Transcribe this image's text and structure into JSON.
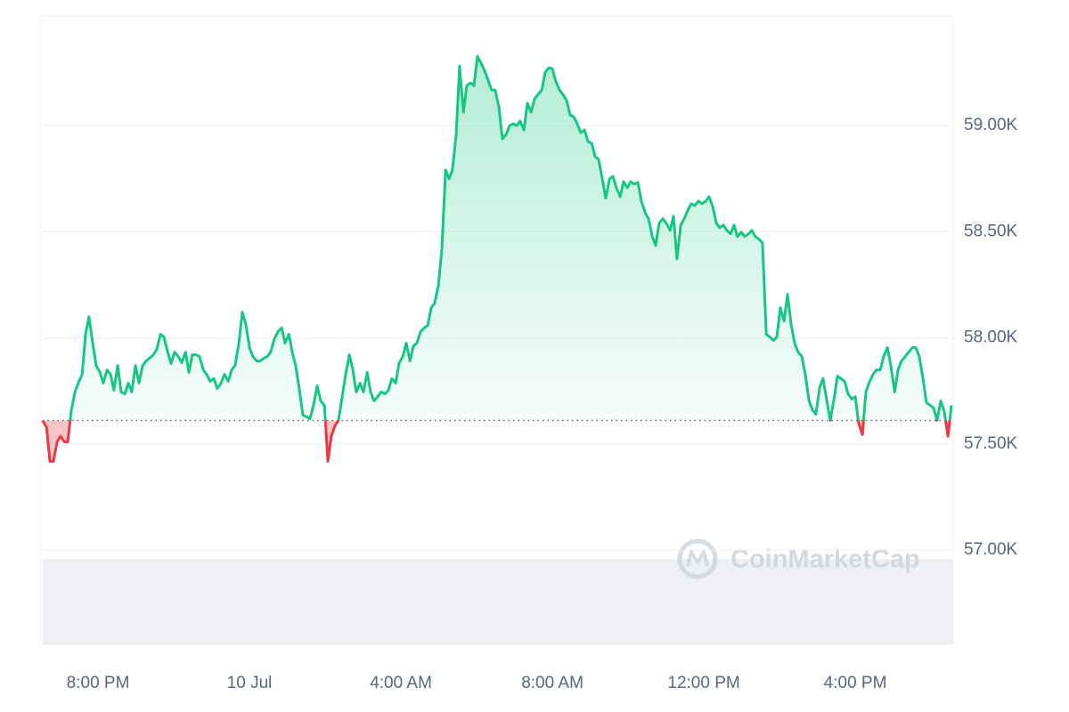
{
  "chart_data": {
    "type": "line",
    "watermark": "CoinMarketCap",
    "color": "#16c784",
    "negative_color": "#ea3943",
    "baseline": 57611,
    "xlim": [
      18.54,
      42.54
    ],
    "xticks": [
      {
        "value": 20,
        "label": "8:00 PM"
      },
      {
        "value": 24,
        "label": "10 Jul"
      },
      {
        "value": 28,
        "label": "4:00 AM"
      },
      {
        "value": 32,
        "label": "8:00 AM"
      },
      {
        "value": 36,
        "label": "12:00 PM"
      },
      {
        "value": 40,
        "label": "4:00 PM"
      }
    ],
    "ylim": [
      56556,
      59516
    ],
    "yticks": [
      {
        "value": 57000,
        "label": "57.00K"
      },
      {
        "value": 57500,
        "label": "57.50K"
      },
      {
        "value": 58000,
        "label": "58.00K"
      },
      {
        "value": 58500,
        "label": "58.50K"
      },
      {
        "value": 59000,
        "label": "59.00K"
      }
    ],
    "grid": true,
    "x": [
      18.54,
      18.64,
      18.73,
      18.82,
      18.92,
      19.01,
      19.11,
      19.2,
      19.29,
      19.39,
      19.48,
      19.58,
      19.67,
      19.76,
      19.86,
      19.95,
      20.05,
      20.14,
      20.24,
      20.33,
      20.42,
      20.52,
      20.61,
      20.71,
      20.8,
      20.89,
      20.99,
      21.08,
      21.18,
      21.27,
      21.36,
      21.46,
      21.55,
      21.65,
      21.74,
      21.84,
      21.93,
      22.02,
      22.12,
      22.21,
      22.31,
      22.4,
      22.49,
      22.59,
      22.68,
      22.78,
      22.87,
      22.96,
      23.06,
      23.15,
      23.25,
      23.34,
      23.44,
      23.53,
      23.62,
      23.72,
      23.81,
      23.91,
      24.0,
      24.09,
      24.19,
      24.28,
      24.38,
      24.47,
      24.56,
      24.66,
      24.75,
      24.85,
      24.94,
      25.04,
      25.13,
      25.22,
      25.32,
      25.41,
      25.51,
      25.6,
      25.69,
      25.79,
      25.88,
      25.98,
      26.07,
      26.16,
      26.26,
      26.35,
      26.45,
      26.54,
      26.64,
      26.73,
      26.82,
      26.92,
      27.01,
      27.11,
      27.2,
      27.29,
      27.39,
      27.48,
      27.58,
      27.67,
      27.76,
      27.86,
      27.95,
      28.05,
      28.14,
      28.24,
      28.33,
      28.42,
      28.52,
      28.61,
      28.71,
      28.8,
      28.89,
      28.99,
      29.08,
      29.18,
      29.27,
      29.36,
      29.46,
      29.55,
      29.65,
      29.74,
      29.84,
      29.93,
      30.02,
      30.12,
      30.21,
      30.31,
      30.4,
      30.49,
      30.59,
      30.68,
      30.78,
      30.87,
      30.96,
      31.06,
      31.15,
      31.25,
      31.34,
      31.44,
      31.53,
      31.62,
      31.72,
      31.81,
      31.91,
      32.0,
      32.09,
      32.19,
      32.28,
      32.38,
      32.47,
      32.56,
      32.66,
      32.75,
      32.85,
      32.94,
      33.04,
      33.13,
      33.22,
      33.32,
      33.41,
      33.51,
      33.6,
      33.69,
      33.79,
      33.88,
      33.98,
      34.07,
      34.16,
      34.26,
      34.35,
      34.45,
      34.54,
      34.64,
      34.73,
      34.82,
      34.92,
      35.01,
      35.11,
      35.2,
      35.29,
      35.39,
      35.48,
      35.58,
      35.67,
      35.76,
      35.86,
      35.95,
      36.05,
      36.14,
      36.24,
      36.33,
      36.42,
      36.52,
      36.61,
      36.71,
      36.8,
      36.89,
      36.99,
      37.08,
      37.18,
      37.27,
      37.36,
      37.46,
      37.55,
      37.65,
      37.74,
      37.84,
      37.93,
      38.02,
      38.12,
      38.21,
      38.31,
      38.4,
      38.49,
      38.59,
      38.68,
      38.78,
      38.87,
      38.96,
      39.06,
      39.15,
      39.25,
      39.34,
      39.44,
      39.53,
      39.62,
      39.72,
      39.81,
      39.91,
      40.0,
      40.09,
      40.19,
      40.28,
      40.38,
      40.47,
      40.56,
      40.66,
      40.75,
      40.85,
      40.94,
      41.04,
      41.13,
      41.22,
      41.32,
      41.41,
      41.51,
      41.6,
      41.69,
      41.79,
      41.88,
      41.98,
      42.07,
      42.16,
      42.26,
      42.35,
      42.45,
      42.54
    ],
    "values": [
      57611,
      57577,
      57418,
      57418,
      57510,
      57536,
      57510,
      57510,
      57653,
      57745,
      57787,
      57828,
      58017,
      58100,
      57975,
      57870,
      57837,
      57787,
      57849,
      57828,
      57753,
      57870,
      57745,
      57736,
      57787,
      57745,
      57870,
      57787,
      57870,
      57891,
      57904,
      57920,
      57946,
      58017,
      58004,
      57933,
      57879,
      57933,
      57912,
      57883,
      57933,
      57837,
      57920,
      57920,
      57912,
      57849,
      57828,
      57795,
      57808,
      57761,
      57787,
      57828,
      57795,
      57849,
      57870,
      57975,
      58121,
      58059,
      57954,
      57912,
      57891,
      57891,
      57904,
      57912,
      57933,
      57996,
      58029,
      58046,
      57975,
      58017,
      57933,
      57870,
      57753,
      57636,
      57628,
      57619,
      57682,
      57774,
      57703,
      57682,
      57418,
      57536,
      57586,
      57611,
      57724,
      57828,
      57920,
      57849,
      57745,
      57787,
      57745,
      57837,
      57745,
      57703,
      57724,
      57745,
      57736,
      57753,
      57808,
      57787,
      57879,
      57912,
      57975,
      57891,
      57962,
      57975,
      58029,
      58046,
      58059,
      58142,
      58163,
      58247,
      58414,
      58791,
      58749,
      58791,
      58958,
      59280,
      59063,
      59188,
      59201,
      59188,
      59326,
      59293,
      59259,
      59209,
      59167,
      59167,
      59084,
      58937,
      58958,
      59000,
      59008,
      59000,
      59021,
      58979,
      59105,
      59063,
      59126,
      59146,
      59167,
      59251,
      59272,
      59268,
      59209,
      59167,
      59146,
      59117,
      59050,
      59042,
      59008,
      58966,
      58979,
      58925,
      58916,
      58854,
      58841,
      58749,
      58657,
      58749,
      58761,
      58707,
      58665,
      58736,
      58707,
      58736,
      58724,
      58732,
      58644,
      58590,
      58561,
      58477,
      58435,
      58540,
      58561,
      58540,
      58506,
      58573,
      58372,
      58531,
      58561,
      58602,
      58632,
      58623,
      58644,
      58632,
      58644,
      58665,
      58615,
      58540,
      58519,
      58531,
      58506,
      58490,
      58531,
      58477,
      58498,
      58477,
      58490,
      58506,
      58477,
      58464,
      58448,
      58017,
      58004,
      57987,
      58004,
      58142,
      58079,
      58205,
      58059,
      57975,
      57933,
      57912,
      57828,
      57703,
      57661,
      57640,
      57766,
      57808,
      57703,
      57611,
      57711,
      57820,
      57808,
      57795,
      57736,
      57711,
      57724,
      57598,
      57544,
      57745,
      57795,
      57828,
      57849,
      57849,
      57912,
      57954,
      57870,
      57745,
      57849,
      57891,
      57912,
      57933,
      57954,
      57954,
      57912,
      57808,
      57695,
      57682,
      57669,
      57611,
      57703,
      57653,
      57536,
      57682
    ]
  }
}
